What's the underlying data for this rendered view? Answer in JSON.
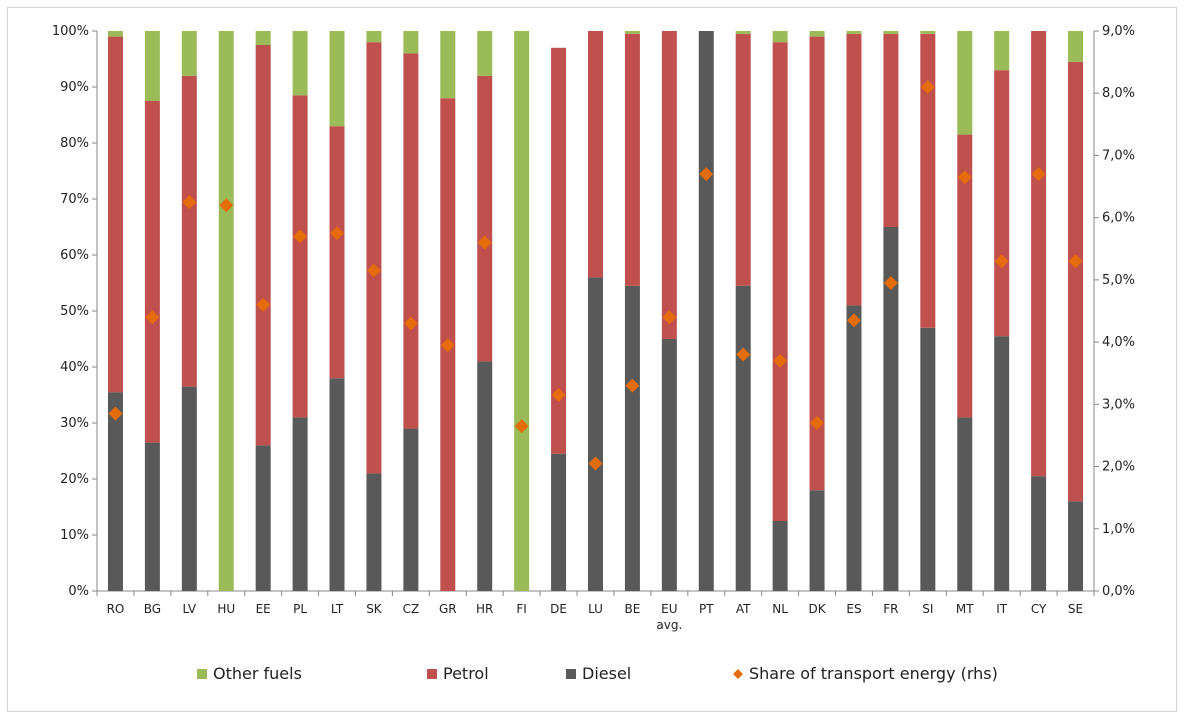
{
  "chart_data": {
    "type": "bar",
    "stacked": true,
    "categories": [
      "RO",
      "BG",
      "LV",
      "HU",
      "EE",
      "PL",
      "LT",
      "SK",
      "CZ",
      "GR",
      "HR",
      "FI",
      "DE",
      "LU",
      "BE",
      "EU",
      "PT",
      "AT",
      "NL",
      "DK",
      "ES",
      "FR",
      "SI",
      "MT",
      "IT",
      "CY",
      "SE"
    ],
    "category_sublabels": {
      "EU": "avg."
    },
    "series": [
      {
        "name": "Diesel",
        "axis": "left",
        "color": "#595959",
        "values": [
          35.5,
          26.5,
          36.5,
          0,
          26,
          31,
          38,
          21,
          29,
          0,
          41,
          0,
          24.5,
          56,
          54.5,
          45,
          100,
          54.5,
          12.5,
          18,
          51,
          65,
          47,
          31,
          45.5,
          20.5,
          16
        ]
      },
      {
        "name": "Petrol",
        "axis": "left",
        "color": "#c0504d",
        "values": [
          63.5,
          61,
          55.5,
          0,
          71.5,
          57.5,
          45,
          77,
          67,
          88,
          51,
          0,
          72.5,
          44,
          45,
          55,
          0,
          45,
          85.5,
          81,
          48.5,
          34.5,
          52.5,
          50.5,
          47.5,
          79.5,
          78.5
        ]
      },
      {
        "name": "Other fuels",
        "axis": "left",
        "color": "#9bbb59",
        "values": [
          1,
          12.5,
          8,
          100,
          2.5,
          11.5,
          17,
          2,
          4,
          12,
          8,
          100,
          0,
          0,
          0.5,
          0,
          0,
          0.5,
          2,
          1,
          0.5,
          0.5,
          0.5,
          18.5,
          7,
          0,
          5.5
        ]
      },
      {
        "name": "Share of transport energy (rhs)",
        "axis": "right",
        "type": "scatter",
        "color": "#e46c0a",
        "values": [
          2.85,
          4.4,
          6.25,
          6.2,
          4.6,
          5.7,
          5.75,
          5.15,
          4.3,
          3.95,
          5.6,
          2.65,
          3.15,
          2.05,
          3.3,
          4.4,
          6.7,
          3.8,
          3.7,
          2.7,
          4.35,
          4.95,
          8.1,
          6.65,
          5.3,
          6.7,
          5.3
        ]
      }
    ],
    "y_left": {
      "min": 0,
      "max": 100,
      "step": 10,
      "tick_labels": [
        "0%",
        "10%",
        "20%",
        "30%",
        "40%",
        "50%",
        "60%",
        "70%",
        "80%",
        "90%",
        "100%"
      ]
    },
    "y_right": {
      "min": 0,
      "max": 9,
      "step": 1,
      "tick_labels": [
        "0,0%",
        "1,0%",
        "2,0%",
        "3,0%",
        "4,0%",
        "5,0%",
        "6,0%",
        "7,0%",
        "8,0%",
        "9,0%"
      ]
    },
    "legend": {
      "position": "bottom",
      "order": [
        "Other fuels",
        "Petrol",
        "Diesel",
        "Share of transport energy (rhs)"
      ]
    },
    "grid": false,
    "title": "",
    "xlabel": "",
    "ylabel": ""
  }
}
